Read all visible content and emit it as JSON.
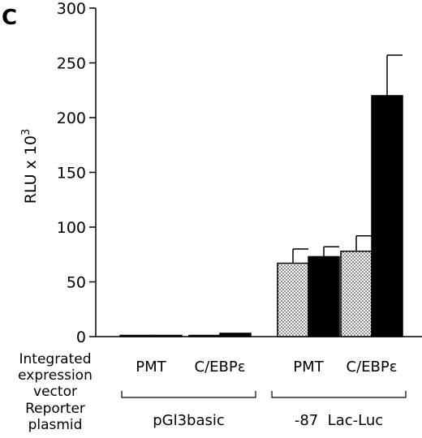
{
  "panel_label": "C",
  "row_labels": {
    "integrated": [
      "Integrated",
      "expression",
      "vector"
    ],
    "reporter": [
      "Reporter",
      "plasmid"
    ]
  },
  "chart_data": {
    "type": "bar",
    "ylabel": "RLU x 10",
    "ylabel_exponent": "3",
    "ylim": [
      0,
      300
    ],
    "yticks": [
      0,
      50,
      100,
      150,
      200,
      250,
      300
    ],
    "grid": false,
    "categories": [
      "PMT",
      "C/EBPε",
      "PMT",
      "C/EBPε"
    ],
    "groups": [
      {
        "label": "pGl3basic",
        "categories": [
          0,
          1
        ]
      },
      {
        "label": "-87  Lac-Luc",
        "categories": [
          2,
          3
        ]
      }
    ],
    "series": [
      {
        "fill": "dotted",
        "color": "#ffffff",
        "values": [
          0.5,
          0.5,
          67,
          78
        ],
        "errors": [
          0,
          0,
          13,
          14
        ]
      },
      {
        "fill": "solid",
        "color": "#000000",
        "values": [
          0.5,
          3,
          73,
          220
        ],
        "errors": [
          0,
          0,
          9,
          37
        ]
      }
    ]
  }
}
